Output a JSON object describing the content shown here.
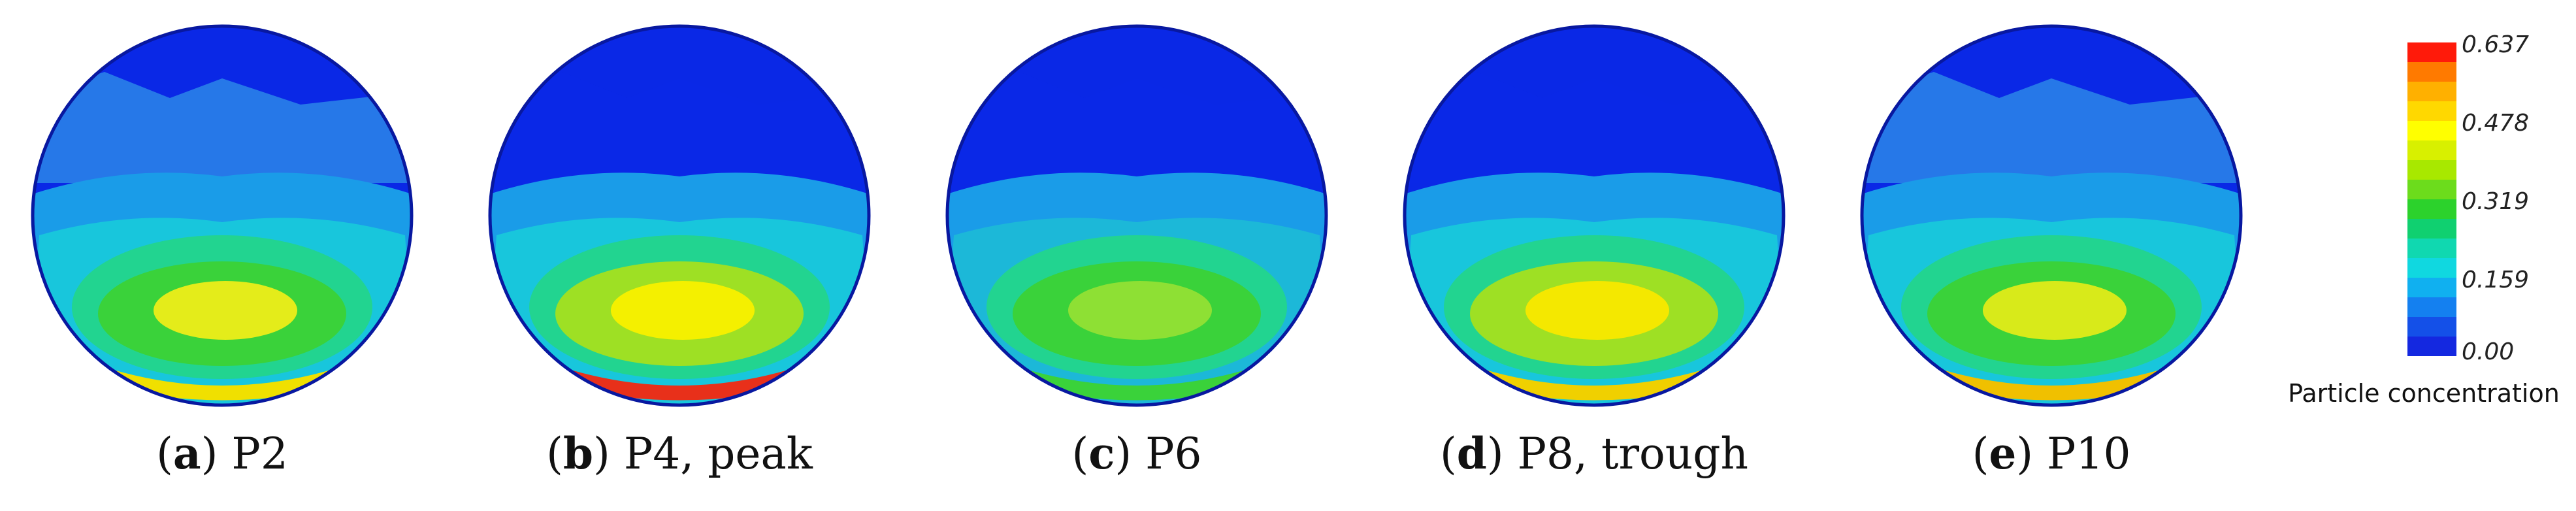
{
  "panels": [
    {
      "letter": "a",
      "label": "P2",
      "colors": {
        "upper": "#2c86e8",
        "mid": "#18c6dc",
        "core": "#3ad23a",
        "hot": "#e4ec1a",
        "edge": "#f0e000"
      }
    },
    {
      "letter": "b",
      "label": "P4, peak",
      "colors": {
        "upper": "#0a28e6",
        "mid": "#18c6dc",
        "core": "#9ee024",
        "hot": "#f4f000",
        "edge": "#e8301a"
      }
    },
    {
      "letter": "c",
      "label": "P6",
      "colors": {
        "upper": "#0a28e6",
        "mid": "#1cb8d8",
        "core": "#3ad23a",
        "hot": "#8ee034",
        "edge": "#3ad23a"
      }
    },
    {
      "letter": "d",
      "label": "P8, trough",
      "colors": {
        "upper": "#0a28e6",
        "mid": "#18c6dc",
        "core": "#9ee024",
        "hot": "#f4e800",
        "edge": "#f0d000"
      }
    },
    {
      "letter": "e",
      "label": "P10",
      "colors": {
        "upper": "#2c86e8",
        "mid": "#18c6dc",
        "core": "#3ad23a",
        "hot": "#d8ea1a",
        "edge": "#f0c000"
      }
    }
  ],
  "colorbar": {
    "ticks": [
      "0.637",
      "0.478",
      "0.319",
      "0.159",
      "0.00"
    ],
    "label": "Particle concentration",
    "bands": [
      "#ff1a0a",
      "#ff7a00",
      "#ffb000",
      "#ffd800",
      "#ffff00",
      "#d8f000",
      "#a8e800",
      "#6cdc1c",
      "#2cd22c",
      "#10d070",
      "#10d8b0",
      "#10d8e0",
      "#10b0f0",
      "#1480f0",
      "#1450e8",
      "#1428e0"
    ]
  }
}
